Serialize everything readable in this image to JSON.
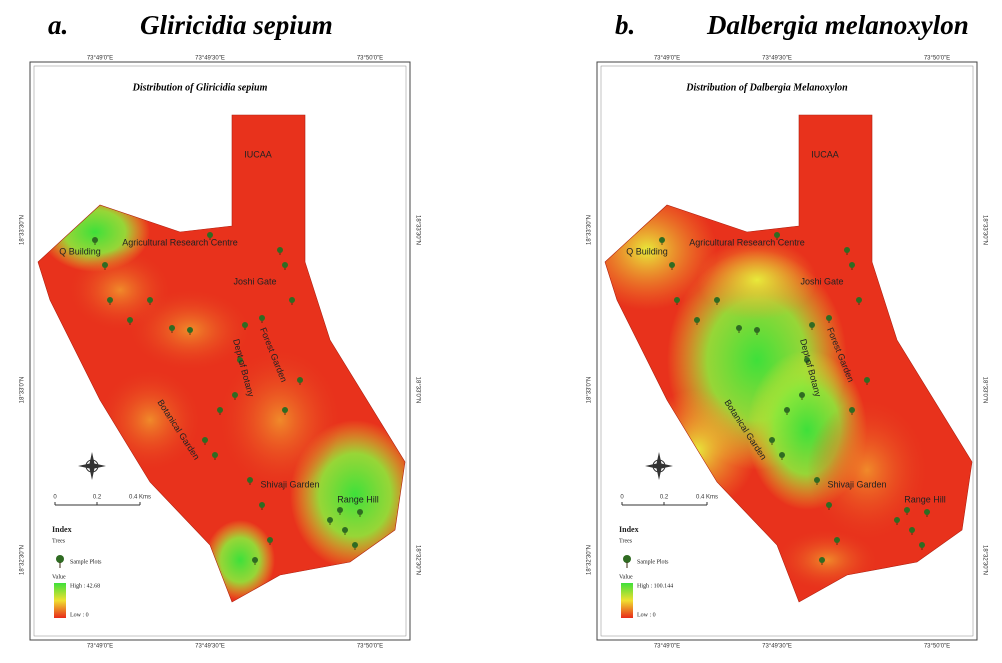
{
  "panels": [
    {
      "letter": "a.",
      "species": "Gliricidia sepium",
      "map_title": "Distribution of Gliricidia sepium",
      "places": [
        "IUCAA",
        "Q Building",
        "Agricultural Research Centre",
        "Joshi Gate",
        "Forest Garden",
        "Dept of Botany",
        "Botanical Garden",
        "Shivaji Garden",
        "Range Hill"
      ],
      "longitudes": [
        "73°49'0\"E",
        "73°49'30\"E",
        "73°50'0\"E"
      ],
      "latitudes": [
        "18°33'30\"N",
        "18°33'0\"N",
        "18°32'30\"N"
      ],
      "scale": [
        "0",
        "0.2",
        "0.4 Kms"
      ],
      "legend": {
        "title": "Index",
        "group": "Trees",
        "sample": "Sample Plots",
        "value": "Value",
        "high": "High : 42.68",
        "low": "Low : 0"
      }
    },
    {
      "letter": "b.",
      "species": "Dalbergia melanoxylon",
      "map_title": "Distribution of Dalbergia Melanoxylon",
      "places": [
        "IUCAA",
        "Q Building",
        "Agricultural Research Centre",
        "Joshi Gate",
        "Forest Garden",
        "Dept of Botany",
        "Botanical Garden",
        "Shivaji Garden",
        "Range Hill"
      ],
      "longitudes": [
        "73°49'0\"E",
        "73°49'30\"E",
        "73°50'0\"E"
      ],
      "latitudes": [
        "18°33'30\"N",
        "18°33'0\"N",
        "18°32'30\"N"
      ],
      "scale": [
        "0",
        "0.2",
        "0.4 Kms"
      ],
      "legend": {
        "title": "Index",
        "group": "Trees",
        "sample": "Sample Plots",
        "value": "Value",
        "high": "High : 100.144",
        "low": "Low : 0"
      }
    }
  ]
}
